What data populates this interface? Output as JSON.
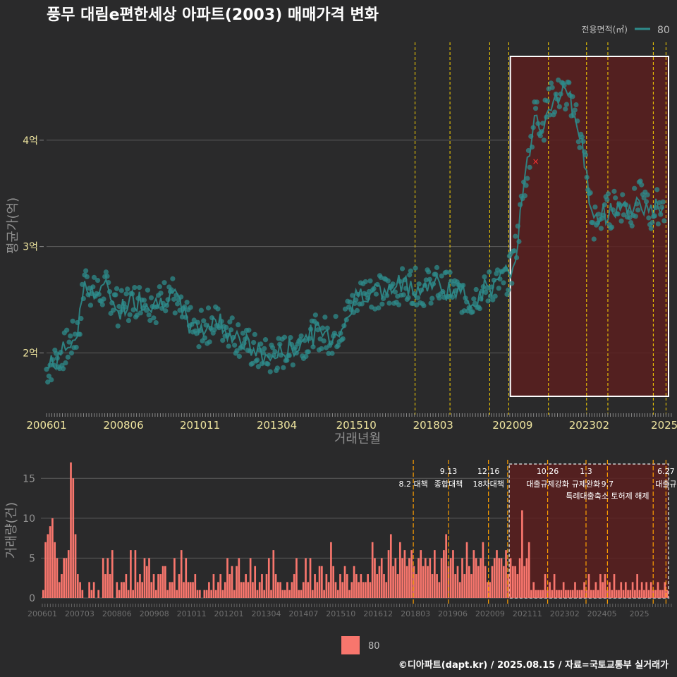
{
  "title": "풍무 대림e편한세상 아파트(2003) 매매가격 변화",
  "footer": "©디아파트(dapt.kr) / 2025.08.15 / 자료=국토교통부 실거래가",
  "colors": {
    "background": "#2a2a2b",
    "line": "#2e8b8b",
    "bar": "#f8766d",
    "policy": "#ffd600",
    "highlight": "#5a1e1e"
  },
  "chart_data": [
    {
      "type": "line",
      "title": "풍무 대림e편한세상 아파트(2003) 매매가격 변화",
      "xlabel": "거래년월",
      "ylabel": "평균가(억)",
      "ylim": [
        1.42,
        4.92
      ],
      "y_ticks": [
        {
          "v": 2,
          "label": "2억"
        },
        {
          "v": 3,
          "label": "3억"
        },
        {
          "v": 4,
          "label": "4억"
        }
      ],
      "x_ticks": [
        "200601",
        "200806",
        "201011",
        "201304",
        "201510",
        "201803",
        "202009",
        "202302",
        "2025"
      ],
      "legend": {
        "title": "전용면적(㎡)",
        "label": "80",
        "position": "top-right"
      },
      "series": [
        {
          "name": "80",
          "x": [
            2006.0,
            2006.5,
            2007.0,
            2007.2,
            2007.5,
            2007.9,
            2008.3,
            2008.7,
            2009.1,
            2009.5,
            2009.9,
            2010.3,
            2010.7,
            2011.0,
            2011.4,
            2011.8,
            2012.2,
            2012.6,
            2013.0,
            2013.4,
            2013.8,
            2014.2,
            2014.6,
            2015.0,
            2015.4,
            2015.8,
            2016.2,
            2016.6,
            2017.0,
            2017.4,
            2017.8,
            2018.2,
            2018.6,
            2019.0,
            2019.4,
            2019.8,
            2020.2,
            2020.6,
            2020.8,
            2021.0,
            2021.2,
            2021.4,
            2021.6,
            2021.8,
            2022.0,
            2022.3,
            2022.6,
            2022.9,
            2023.2,
            2023.5,
            2023.8,
            2024.1,
            2024.4,
            2024.7,
            2025.0,
            2025.3,
            2025.6
          ],
          "values": [
            1.85,
            2.0,
            2.2,
            2.7,
            2.55,
            2.6,
            2.4,
            2.5,
            2.5,
            2.45,
            2.6,
            2.35,
            2.2,
            2.25,
            2.3,
            2.2,
            2.1,
            2.0,
            1.95,
            2.0,
            2.05,
            2.15,
            2.2,
            2.15,
            2.3,
            2.55,
            2.6,
            2.55,
            2.62,
            2.65,
            2.6,
            2.65,
            2.6,
            2.55,
            2.5,
            2.6,
            2.65,
            2.75,
            3.0,
            3.5,
            3.9,
            4.3,
            4.1,
            4.35,
            4.4,
            4.45,
            4.3,
            3.9,
            3.2,
            3.3,
            3.35,
            3.4,
            3.35,
            3.45,
            3.3,
            3.4,
            3.3
          ],
          "outlier": {
            "x": 2021.4,
            "y": 3.8
          }
        }
      ],
      "policy_dates": [
        2017.6,
        2018.7,
        2019.95,
        2020.55,
        2021.8,
        2023.0,
        2023.67,
        2025.1,
        2025.5
      ],
      "highlight_period": [
        2020.6,
        2025.58
      ]
    },
    {
      "type": "bar",
      "ylabel": "거래량(건)",
      "ylim": [
        0,
        17.5
      ],
      "y_ticks": [
        0,
        5,
        10,
        15
      ],
      "x_ticks": [
        "200601",
        "200703",
        "200806",
        "200908",
        "201011",
        "201201",
        "201304",
        "201407",
        "201510",
        "201612",
        "201803",
        "201906",
        "202009",
        "202111",
        "202302",
        "202405",
        "2025"
      ],
      "series": [
        {
          "name": "80",
          "values": [
            1,
            7,
            8,
            9,
            10,
            7,
            5,
            2,
            3,
            5,
            5,
            6,
            17,
            15,
            8,
            3,
            2,
            1,
            0,
            0,
            2,
            1,
            2,
            0,
            1,
            0,
            5,
            3,
            5,
            3,
            6,
            0,
            2,
            1,
            2,
            2,
            3,
            1,
            6,
            1,
            6,
            2,
            3,
            2,
            5,
            4,
            5,
            2,
            3,
            1,
            3,
            3,
            4,
            4,
            1,
            2,
            2,
            5,
            1,
            3,
            6,
            2,
            5,
            2,
            2,
            2,
            3,
            1,
            1,
            0,
            1,
            1,
            2,
            1,
            3,
            1,
            2,
            3,
            1,
            2,
            5,
            3,
            4,
            1,
            4,
            5,
            2,
            2,
            3,
            2,
            5,
            2,
            4,
            1,
            2,
            3,
            1,
            3,
            5,
            1,
            6,
            3,
            2,
            2,
            1,
            1,
            2,
            1,
            2,
            3,
            5,
            1,
            1,
            2,
            5,
            2,
            5,
            1,
            3,
            2,
            4,
            4,
            1,
            3,
            2,
            7,
            4,
            2,
            1,
            3,
            2,
            4,
            3,
            1,
            2,
            4,
            3,
            2,
            3,
            2,
            2,
            3,
            2,
            7,
            5,
            3,
            4,
            5,
            3,
            2,
            6,
            8,
            4,
            5,
            3,
            7,
            5,
            6,
            4,
            5,
            6,
            4,
            3,
            5,
            6,
            4,
            5,
            4,
            5,
            3,
            6,
            3,
            2,
            5,
            6,
            8,
            4,
            5,
            6,
            3,
            4,
            2,
            5,
            3,
            7,
            4,
            3,
            6,
            5,
            4,
            5,
            7,
            4,
            2,
            2,
            4,
            5,
            6,
            5,
            5,
            4,
            6,
            3,
            5,
            4,
            4,
            3,
            5,
            11,
            4,
            5,
            7,
            1,
            2,
            1,
            1,
            1,
            1,
            3,
            1,
            2,
            1,
            3,
            1,
            1,
            1,
            2,
            1,
            1,
            1,
            1,
            2,
            1,
            1,
            1,
            2,
            1,
            3,
            1,
            1,
            2,
            1,
            3,
            2,
            3,
            1,
            2,
            1,
            3,
            1,
            1,
            2,
            1,
            2,
            1,
            1,
            2,
            1,
            3,
            1,
            2,
            1,
            2,
            1,
            2,
            1,
            1,
            2,
            1,
            1,
            2,
            1
          ]
        }
      ],
      "annotations": [
        {
          "x": 2017.6,
          "label": "8.2 대책",
          "row": 1
        },
        {
          "x": 2018.7,
          "label": "9.13",
          "row": 0
        },
        {
          "x": 2018.7,
          "label": "종합대책",
          "row": 1
        },
        {
          "x": 2019.95,
          "label": "12.16",
          "row": 0
        },
        {
          "x": 2019.95,
          "label": "18차대책",
          "row": 1
        },
        {
          "x": 2021.8,
          "label": "10.26",
          "row": 0
        },
        {
          "x": 2021.8,
          "label": "대출규제강화",
          "row": 1
        },
        {
          "x": 2023.0,
          "label": "1.3",
          "row": 0
        },
        {
          "x": 2023.0,
          "label": "규제완화",
          "row": 1
        },
        {
          "x": 2023.67,
          "label": "9.7",
          "row": 1
        },
        {
          "x": 2023.67,
          "label": "특례대출축소 토허제 해제",
          "row": 2
        },
        {
          "x": 2025.5,
          "label": "6.27",
          "row": 0
        },
        {
          "x": 2025.5,
          "label": "대출규",
          "row": 1
        }
      ],
      "legend": {
        "label": "80",
        "position": "bottom"
      }
    }
  ]
}
